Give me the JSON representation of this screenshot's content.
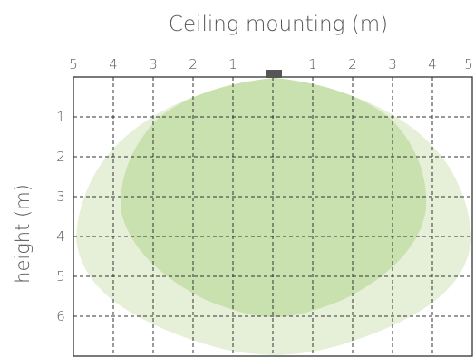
{
  "title": "Ceiling mounting (m)",
  "y_axis_label": "height (m)",
  "x_tick_labels": [
    "5",
    "4",
    "3",
    "2",
    "1",
    "1",
    "2",
    "3",
    "4",
    "5"
  ],
  "y_tick_labels": [
    "1",
    "2",
    "3",
    "4",
    "5",
    "6"
  ],
  "colors": {
    "outer_zone": "#e6f0d8",
    "inner_zone": "#c9e1af",
    "grid": "#333333",
    "sensor": "#555555",
    "text": "#555555"
  },
  "icons": {
    "sensor": "ceiling-sensor-icon"
  }
}
